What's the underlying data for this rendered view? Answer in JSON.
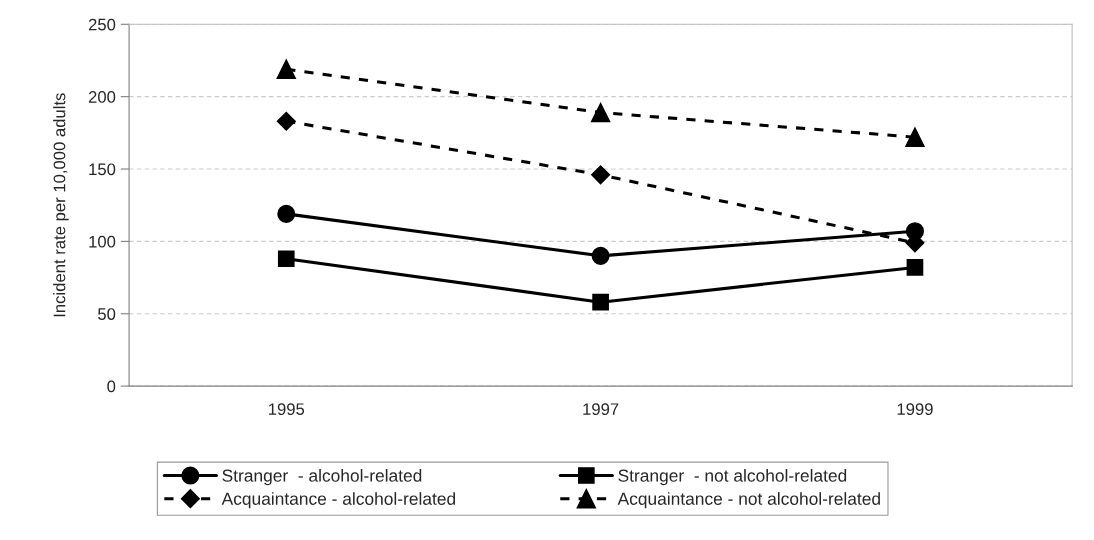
{
  "chart_data": {
    "type": "line",
    "ylabel": "Incident rate per 10,000 adults",
    "categories": [
      "1995",
      "1997",
      "1999"
    ],
    "series": [
      {
        "name": "Stranger  - alcohol-related",
        "color": "#000000",
        "marker": "circle",
        "line_style": "solid",
        "values": [
          119,
          90,
          107
        ]
      },
      {
        "name": "Stranger  - not alcohol-related",
        "color": "#000000",
        "marker": "square",
        "line_style": "solid",
        "values": [
          88,
          58,
          82
        ]
      },
      {
        "name": "Acquaintance - alcohol-related",
        "color": "#000000",
        "marker": "diamond",
        "line_style": "dashed",
        "values": [
          183,
          146,
          99
        ]
      },
      {
        "name": "Acquaintance - not alcohol-related",
        "color": "#000000",
        "marker": "triangle",
        "line_style": "dashed",
        "values": [
          219,
          189,
          172
        ]
      }
    ],
    "ylim": [
      0,
      250
    ],
    "yticks": [
      0,
      50,
      100,
      150,
      200,
      250
    ],
    "grid": "y",
    "legend": "bottom"
  }
}
